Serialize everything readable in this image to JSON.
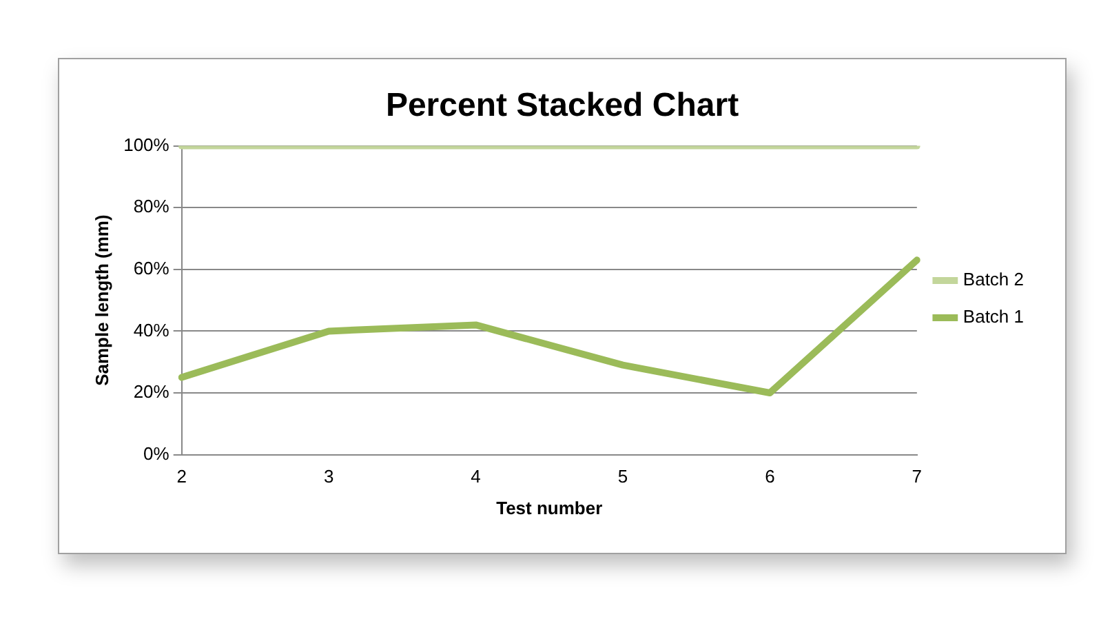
{
  "chart_data": {
    "type": "line",
    "title": "Percent Stacked Chart",
    "xlabel": "Test number",
    "ylabel": "Sample length (mm)",
    "categories": [
      "2",
      "3",
      "4",
      "5",
      "6",
      "7"
    ],
    "series": [
      {
        "name": "Batch 2",
        "color": "#c3d69b",
        "values": [
          100,
          100,
          100,
          100,
          100,
          100
        ]
      },
      {
        "name": "Batch 1",
        "color": "#9bbb59",
        "values": [
          25,
          40,
          42,
          29,
          20,
          63
        ]
      }
    ],
    "ylim": [
      0,
      100
    ],
    "yticks": [
      {
        "value": 0,
        "label": "0%"
      },
      {
        "value": 20,
        "label": "20%"
      },
      {
        "value": 40,
        "label": "40%"
      },
      {
        "value": 60,
        "label": "60%"
      },
      {
        "value": 80,
        "label": "80%"
      },
      {
        "value": 100,
        "label": "100%"
      }
    ],
    "grid": "y",
    "legend": "right",
    "marker": "none",
    "line_style": "solid"
  }
}
